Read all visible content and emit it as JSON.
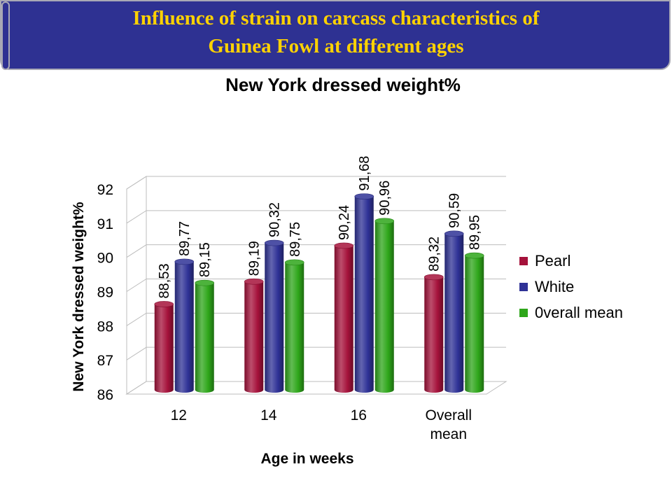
{
  "header": {
    "title_line1": "Influence of strain on carcass characteristics of",
    "title_line2": "Guinea Fowl at different ages"
  },
  "colors": {
    "banner_bg": "#2e3192",
    "banner_text": "#ffd200",
    "pearl": "#a5123b",
    "white": "#2f3296",
    "overall": "#2ea61a"
  },
  "chart_data": {
    "type": "bar",
    "title": "New York dressed weight%",
    "xlabel": "Age in weeks",
    "ylabel": "New York dressed weight%",
    "ylim": [
      86,
      92
    ],
    "yticks": [
      "86",
      "87",
      "88",
      "89",
      "90",
      "91",
      "92"
    ],
    "grid": true,
    "legend_position": "right",
    "categories": [
      "12",
      "14",
      "16",
      "Overall mean"
    ],
    "series": [
      {
        "name": "Pearl",
        "values": [
          88.53,
          89.19,
          90.24,
          89.32
        ],
        "labels": [
          "88,53",
          "89,19",
          "90,24",
          "89,32"
        ],
        "color": "#a5123b"
      },
      {
        "name": "White",
        "values": [
          89.77,
          90.32,
          91.68,
          90.59
        ],
        "labels": [
          "89,77",
          "90,32",
          "91,68",
          "90,59"
        ],
        "color": "#2f3296"
      },
      {
        "name": "0verall mean",
        "values": [
          89.15,
          89.75,
          90.96,
          89.95
        ],
        "labels": [
          "89,15",
          "89,75",
          "90,96",
          "89,95"
        ],
        "color": "#2ea61a"
      }
    ]
  }
}
